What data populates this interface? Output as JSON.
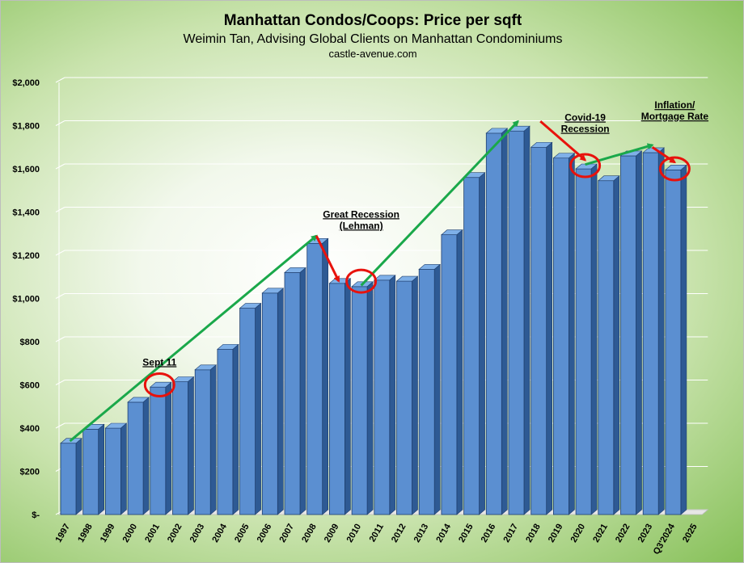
{
  "header": {
    "title": "Manhattan Condos/Coops: Price per sqft",
    "subtitle": "Weimin Tan, Advising Global Clients on Manhattan Condominiums",
    "source": "castle-avenue.com"
  },
  "chart_data": {
    "type": "bar",
    "style": "3d-column",
    "title": "Manhattan Condos/Coops: Price per sqft",
    "xlabel": "",
    "ylabel": "",
    "ylim": [
      0,
      2000
    ],
    "yticks": [
      "$-",
      "$200",
      "$400",
      "$600",
      "$800",
      "$1,000",
      "$1,200",
      "$1,400",
      "$1,600",
      "$1,800",
      "$2,000"
    ],
    "grid": true,
    "categories": [
      "1997",
      "1998",
      "1999",
      "2000",
      "2001",
      "2002",
      "2003",
      "2004",
      "2005",
      "2006",
      "2007",
      "2008",
      "2009",
      "2010",
      "2011",
      "2012",
      "2013",
      "2014",
      "2015",
      "2016",
      "2017",
      "2018",
      "2019",
      "2020",
      "2021",
      "2022",
      "2023",
      "Q3'2024",
      "2025"
    ],
    "values": [
      330,
      395,
      400,
      520,
      590,
      615,
      670,
      765,
      955,
      1025,
      1120,
      1255,
      1070,
      1055,
      1085,
      1080,
      1135,
      1295,
      1560,
      1765,
      1775,
      1700,
      1650,
      1600,
      1545,
      1660,
      1675,
      1595,
      null
    ],
    "colors": {
      "bar": "#5b8fd1",
      "bar_top": "#7fb0e8",
      "bar_side": "#2e5a94",
      "trend_up": "#1aa84a",
      "trend_down": "#e8120c",
      "circle": "#e8120c"
    },
    "annotations": [
      {
        "label": "Sept 11",
        "category": "2001"
      },
      {
        "label": "Great Recession",
        "label2": "(Lehman)",
        "category": "2010"
      },
      {
        "label": "Covid-19",
        "label2": "Recession",
        "category": "2020"
      },
      {
        "label": "Inflation/",
        "label2": "Mortgage Rate",
        "category": "Q3'2024"
      }
    ],
    "trend_lines": [
      {
        "direction": "up",
        "from": [
          "1997",
          340
        ],
        "to": [
          "2008",
          1290
        ]
      },
      {
        "direction": "down",
        "from": [
          "2008",
          1290
        ],
        "to": [
          "2009",
          1080
        ]
      },
      {
        "direction": "up",
        "from": [
          "2010",
          1060
        ],
        "to": [
          "2017",
          1820
        ]
      },
      {
        "direction": "down",
        "from": [
          "2018",
          1820
        ],
        "to": [
          "2020",
          1640
        ]
      },
      {
        "direction": "up",
        "from": [
          "2020",
          1620
        ],
        "to": [
          "2023",
          1710
        ]
      },
      {
        "direction": "down",
        "from": [
          "2023",
          1700
        ],
        "to": [
          "Q3'2024",
          1630
        ]
      }
    ],
    "circles": [
      {
        "category": "2001",
        "value": 600
      },
      {
        "category": "2010",
        "value": 1080
      },
      {
        "category": "2020",
        "value": 1615
      },
      {
        "category": "Q3'2024",
        "value": 1600
      }
    ]
  }
}
